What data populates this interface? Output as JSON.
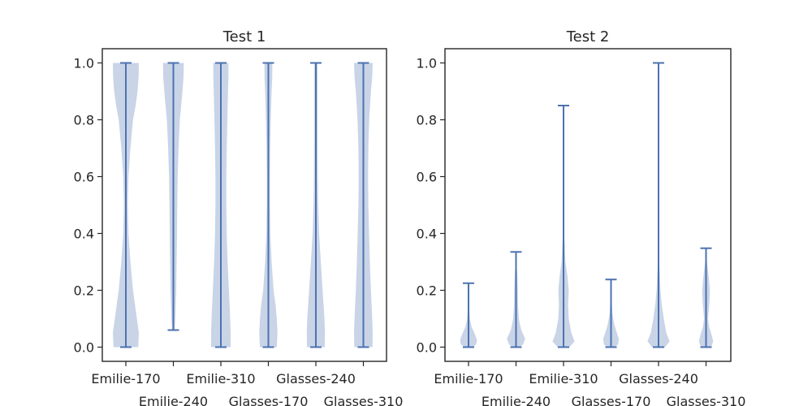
{
  "chart_data": [
    {
      "type": "violin",
      "title": "Test 1",
      "categories": [
        "Emilie-170",
        "Emilie-240",
        "Emilie-310",
        "Glasses-170",
        "Glasses-240",
        "Glasses-310"
      ],
      "ylim": [
        -0.05,
        1.05
      ],
      "yticks": [
        "0.0",
        "0.2",
        "0.4",
        "0.6",
        "0.8",
        "1.0"
      ],
      "grid": false,
      "series": [
        {
          "category": "Emilie-170",
          "min": 0.0,
          "max": 1.0,
          "density_y": [
            0.0,
            0.05,
            0.1,
            0.15,
            0.2,
            0.3,
            0.4,
            0.5,
            0.6,
            0.7,
            0.75,
            0.8,
            0.85,
            0.9,
            0.95,
            1.0
          ],
          "density_w": [
            0.95,
            1.0,
            0.85,
            0.7,
            0.55,
            0.35,
            0.2,
            0.15,
            0.2,
            0.35,
            0.45,
            0.55,
            0.75,
            0.9,
            0.98,
            1.0
          ]
        },
        {
          "category": "Emilie-240",
          "min": 0.06,
          "max": 1.0,
          "density_y": [
            0.06,
            0.1,
            0.2,
            0.3,
            0.4,
            0.5,
            0.6,
            0.7,
            0.8,
            0.85,
            0.9,
            0.95,
            1.0
          ],
          "density_w": [
            0.1,
            0.15,
            0.22,
            0.25,
            0.28,
            0.3,
            0.33,
            0.4,
            0.5,
            0.6,
            0.7,
            0.78,
            0.8
          ]
        },
        {
          "category": "Emilie-310",
          "min": 0.0,
          "max": 1.0,
          "density_y": [
            0.0,
            0.05,
            0.1,
            0.2,
            0.3,
            0.4,
            0.5,
            0.6,
            0.7,
            0.8,
            0.9,
            0.95,
            1.0
          ],
          "density_w": [
            0.75,
            0.75,
            0.72,
            0.62,
            0.52,
            0.45,
            0.42,
            0.42,
            0.45,
            0.5,
            0.55,
            0.58,
            0.58
          ]
        },
        {
          "category": "Glasses-170",
          "min": 0.0,
          "max": 1.0,
          "density_y": [
            0.0,
            0.05,
            0.1,
            0.15,
            0.2,
            0.3,
            0.4,
            0.5,
            0.6,
            0.7,
            0.8,
            0.9,
            0.95,
            1.0
          ],
          "density_w": [
            0.65,
            0.7,
            0.65,
            0.55,
            0.4,
            0.25,
            0.15,
            0.12,
            0.12,
            0.14,
            0.18,
            0.25,
            0.3,
            0.3
          ]
        },
        {
          "category": "Glasses-240",
          "min": 0.0,
          "max": 1.0,
          "density_y": [
            0.0,
            0.05,
            0.1,
            0.2,
            0.3,
            0.4,
            0.5,
            0.6,
            0.7,
            0.8,
            0.9,
            0.95,
            1.0
          ],
          "density_w": [
            0.68,
            0.7,
            0.66,
            0.52,
            0.38,
            0.25,
            0.18,
            0.15,
            0.14,
            0.13,
            0.13,
            0.13,
            0.13
          ]
        },
        {
          "category": "Glasses-310",
          "min": 0.0,
          "max": 1.0,
          "density_y": [
            0.0,
            0.05,
            0.1,
            0.2,
            0.3,
            0.4,
            0.5,
            0.6,
            0.7,
            0.8,
            0.9,
            0.95,
            1.0
          ],
          "density_w": [
            0.7,
            0.72,
            0.68,
            0.58,
            0.5,
            0.44,
            0.38,
            0.36,
            0.38,
            0.45,
            0.58,
            0.68,
            0.72
          ]
        }
      ]
    },
    {
      "type": "violin",
      "title": "Test 2",
      "categories": [
        "Emilie-170",
        "Emilie-240",
        "Emilie-310",
        "Glasses-170",
        "Glasses-240",
        "Glasses-310"
      ],
      "ylim": [
        -0.05,
        1.05
      ],
      "yticks": [
        "0.0",
        "0.2",
        "0.4",
        "0.6",
        "0.8",
        "1.0"
      ],
      "grid": false,
      "series": [
        {
          "category": "Emilie-170",
          "min": 0.0,
          "max": 0.225,
          "density_y": [
            0.0,
            0.01,
            0.025,
            0.05,
            0.07,
            0.1,
            0.15,
            0.225
          ],
          "density_w": [
            0.3,
            0.6,
            0.65,
            0.45,
            0.25,
            0.1,
            0.04,
            0.01
          ]
        },
        {
          "category": "Emilie-240",
          "min": 0.0,
          "max": 0.335,
          "density_y": [
            0.0,
            0.01,
            0.03,
            0.06,
            0.1,
            0.15,
            0.2,
            0.25,
            0.3,
            0.335
          ],
          "density_w": [
            0.25,
            0.55,
            0.7,
            0.4,
            0.22,
            0.15,
            0.14,
            0.1,
            0.04,
            0.01
          ]
        },
        {
          "category": "Emilie-310",
          "min": 0.0,
          "max": 0.85,
          "density_y": [
            0.0,
            0.02,
            0.05,
            0.1,
            0.15,
            0.2,
            0.25,
            0.3,
            0.4,
            0.5,
            0.6,
            0.7,
            0.85
          ],
          "density_w": [
            0.45,
            0.85,
            0.6,
            0.4,
            0.35,
            0.4,
            0.3,
            0.15,
            0.05,
            0.03,
            0.02,
            0.01,
            0.01
          ]
        },
        {
          "category": "Glasses-170",
          "min": 0.0,
          "max": 0.238,
          "density_y": [
            0.0,
            0.01,
            0.03,
            0.05,
            0.08,
            0.12,
            0.18,
            0.238
          ],
          "density_w": [
            0.3,
            0.55,
            0.6,
            0.45,
            0.25,
            0.1,
            0.04,
            0.01
          ]
        },
        {
          "category": "Glasses-240",
          "min": 0.0,
          "max": 1.0,
          "density_y": [
            0.0,
            0.02,
            0.05,
            0.1,
            0.15,
            0.2,
            0.3,
            0.4,
            0.5,
            0.7,
            0.9,
            1.0
          ],
          "density_w": [
            0.5,
            0.85,
            0.6,
            0.4,
            0.25,
            0.15,
            0.05,
            0.03,
            0.02,
            0.01,
            0.01,
            0.01
          ]
        },
        {
          "category": "Glasses-310",
          "min": 0.0,
          "max": 0.348,
          "density_y": [
            0.0,
            0.02,
            0.04,
            0.07,
            0.1,
            0.15,
            0.2,
            0.25,
            0.3,
            0.348
          ],
          "density_w": [
            0.4,
            0.55,
            0.45,
            0.25,
            0.15,
            0.25,
            0.3,
            0.2,
            0.07,
            0.01
          ]
        }
      ]
    }
  ],
  "colors": {
    "violin_fill": "#4c72b0",
    "violin_lines": "#4c72b0",
    "axes": "#262626"
  }
}
